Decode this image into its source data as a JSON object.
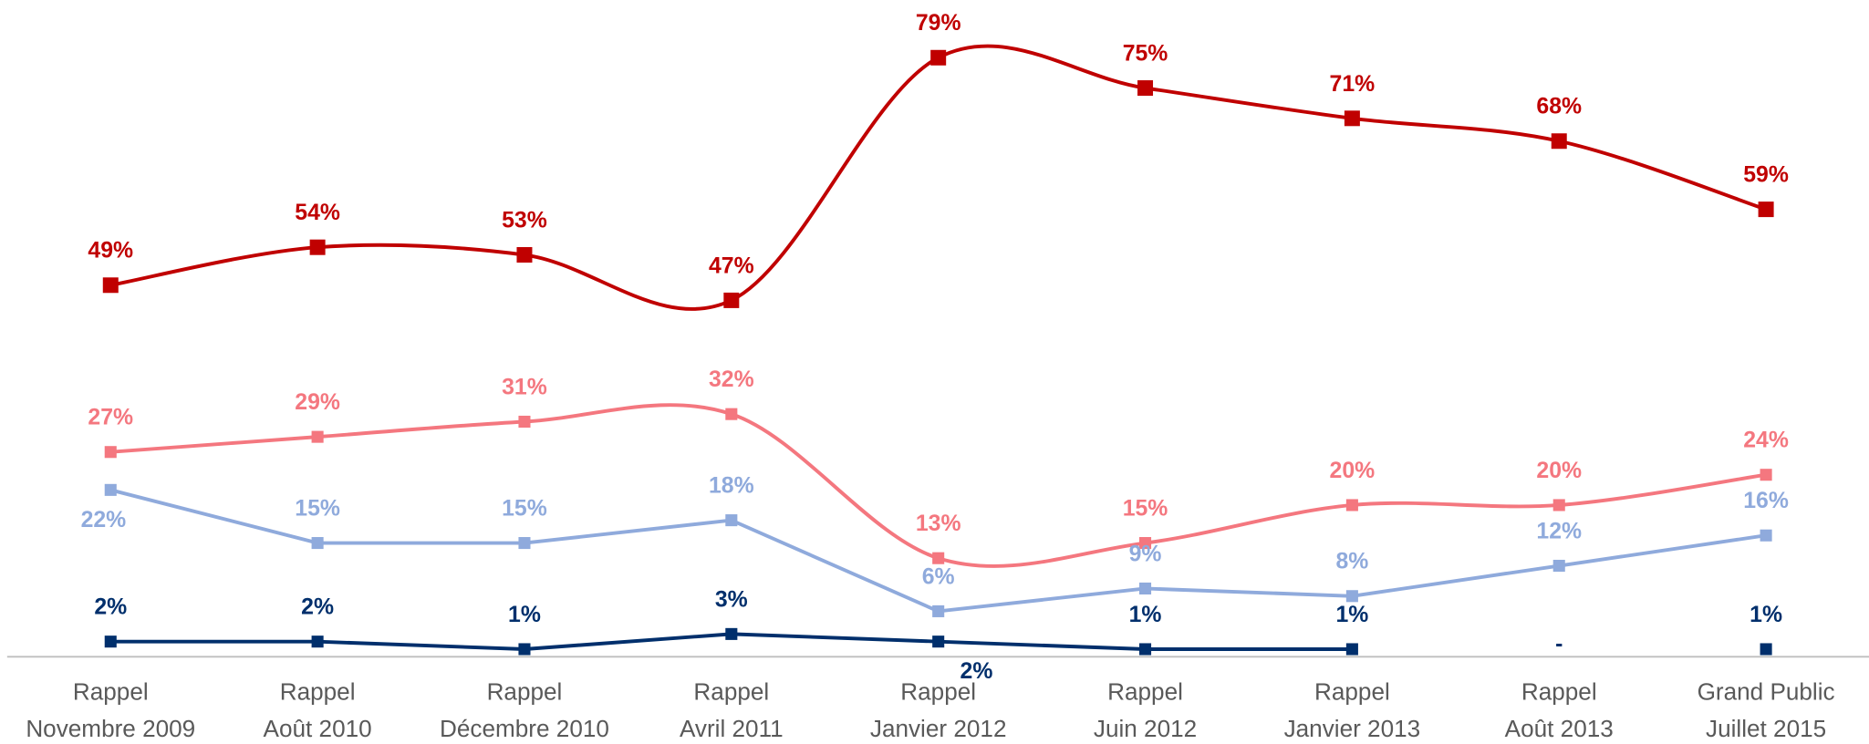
{
  "chart_data": {
    "type": "line",
    "categories": [
      [
        "Rappel",
        "Novembre 2009"
      ],
      [
        "Rappel",
        "Août 2010"
      ],
      [
        "Rappel",
        "Décembre 2010"
      ],
      [
        "Rappel",
        "Avril 2011"
      ],
      [
        "Rappel",
        "Janvier 2012"
      ],
      [
        "Rappel",
        "Juin 2012"
      ],
      [
        "Rappel",
        "Janvier 2013"
      ],
      [
        "Rappel",
        "Août 2013"
      ],
      [
        "Grand Public",
        "Juillet 2015"
      ]
    ],
    "ylim": [
      0,
      85
    ],
    "series": [
      {
        "color": "#c00000",
        "smooth": true,
        "values": [
          49,
          54,
          53,
          47,
          79,
          75,
          71,
          68,
          59
        ],
        "value_labels": [
          "49%",
          "54%",
          "53%",
          "47%",
          "79%",
          "75%",
          "71%",
          "68%",
          "59%"
        ]
      },
      {
        "color": "#f4777f",
        "smooth": true,
        "values": [
          27,
          29,
          31,
          32,
          13,
          15,
          20,
          20,
          24
        ],
        "value_labels": [
          "27%",
          "29%",
          "31%",
          "32%",
          "13%",
          "15%",
          "20%",
          "20%",
          "24%"
        ]
      },
      {
        "color": "#8faadc",
        "smooth": false,
        "values": [
          22,
          15,
          15,
          18,
          6,
          9,
          8,
          12,
          16
        ],
        "value_labels": [
          "22%",
          "15%",
          "15%",
          "18%",
          "6%",
          "9%",
          "8%",
          "12%",
          "16%"
        ]
      },
      {
        "color": "#002f6c",
        "smooth": false,
        "values": [
          2,
          2,
          1,
          3,
          2,
          1,
          1,
          null,
          1
        ],
        "value_labels": [
          "2%",
          "2%",
          "1%",
          "3%",
          "2%",
          "1%",
          "1%",
          "-",
          "1%"
        ]
      }
    ]
  }
}
